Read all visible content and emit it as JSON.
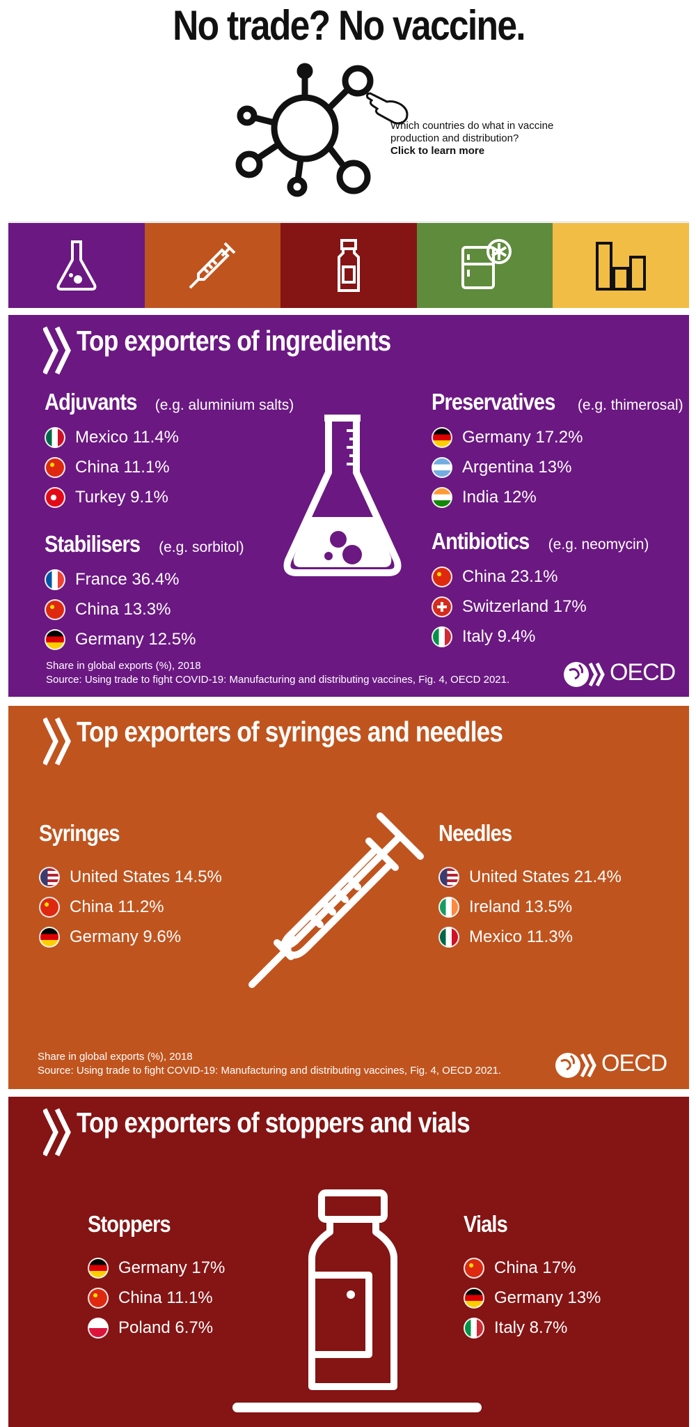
{
  "header": {
    "title": "No trade? No vaccine.",
    "cta_text": "Which countries do what in vaccine production and distribution?",
    "cta_link": "Click to learn more"
  },
  "tabs": [
    {
      "name": "ingredients",
      "icon": "flask-icon",
      "color": "#6b1882"
    },
    {
      "name": "syringes",
      "icon": "syringe-icon",
      "color": "#c0541e"
    },
    {
      "name": "vials",
      "icon": "vial-icon",
      "color": "#851414"
    },
    {
      "name": "storage",
      "icon": "freezer-icon",
      "color": "#5f8b3c"
    },
    {
      "name": "statistics",
      "icon": "bar-chart-icon",
      "color": "#f2bd45"
    }
  ],
  "ingredients": {
    "title": "Top exporters of ingredients",
    "color": "#6b1882",
    "adjuvants": {
      "name": "Adjuvants",
      "example": "(e.g. aluminium salts)",
      "items": [
        {
          "label": "Mexico 11.4%",
          "flag": "mexico"
        },
        {
          "label": "China 11.1%",
          "flag": "china"
        },
        {
          "label": "Turkey 9.1%",
          "flag": "turkey"
        }
      ]
    },
    "preservatives": {
      "name": "Preservatives",
      "example": "(e.g. thimerosal)",
      "items": [
        {
          "label": "Germany 17.2%",
          "flag": "germany"
        },
        {
          "label": "Argentina 13%",
          "flag": "argentina"
        },
        {
          "label": "India 12%",
          "flag": "india"
        }
      ]
    },
    "stabilisers": {
      "name": "Stabilisers",
      "example": "(e.g. sorbitol)",
      "items": [
        {
          "label": "France 36.4%",
          "flag": "france"
        },
        {
          "label": "China 13.3%",
          "flag": "china"
        },
        {
          "label": "Germany 12.5%",
          "flag": "germany"
        }
      ]
    },
    "antibiotics": {
      "name": "Antibiotics",
      "example": "(e.g. neomycin)",
      "items": [
        {
          "label": "China 23.1%",
          "flag": "china"
        },
        {
          "label": "Switzerland 17%",
          "flag": "switzerland"
        },
        {
          "label": "Italy 9.4%",
          "flag": "italy"
        }
      ]
    },
    "note1": "Share in global exports (%), 2018",
    "note2": "Source: Using trade to fight COVID-19: Manufacturing and distributing vaccines, Fig. 4, OECD 2021."
  },
  "syringes": {
    "title": "Top exporters of syringes and needles",
    "color": "#c0541e",
    "syringes_group": {
      "name": "Syringes",
      "items": [
        {
          "label": "United States 14.5%",
          "flag": "usa"
        },
        {
          "label": "China 11.2%",
          "flag": "china"
        },
        {
          "label": "Germany 9.6%",
          "flag": "germany"
        }
      ]
    },
    "needles_group": {
      "name": "Needles",
      "items": [
        {
          "label": "United States 21.4%",
          "flag": "usa"
        },
        {
          "label": "Ireland 13.5%",
          "flag": "ireland"
        },
        {
          "label": "Mexico 11.3%",
          "flag": "mexico"
        }
      ]
    },
    "note1": "Share in global exports (%), 2018",
    "note2": "Source: Using trade to fight COVID-19: Manufacturing and distributing vaccines, Fig. 4, OECD 2021."
  },
  "stoppers": {
    "title": "Top exporters of stoppers and vials",
    "color": "#851414",
    "stoppers_group": {
      "name": "Stoppers",
      "items": [
        {
          "label": "Germany 17%",
          "flag": "germany"
        },
        {
          "label": "China 11.1%",
          "flag": "china"
        },
        {
          "label": "Poland 6.7%",
          "flag": "poland"
        }
      ]
    },
    "vials_group": {
      "name": "Vials",
      "items": [
        {
          "label": "China 17%",
          "flag": "china"
        },
        {
          "label": "Germany 13%",
          "flag": "germany"
        },
        {
          "label": "Italy 8.7%",
          "flag": "italy"
        }
      ]
    }
  },
  "brand": {
    "logo_text": "OECD"
  }
}
